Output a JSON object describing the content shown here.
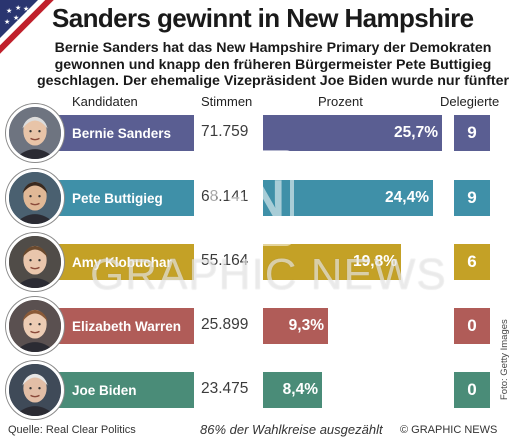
{
  "title": "Sanders gewinnt in New Hampshire",
  "subtitle": "Bernie Sanders hat das New Hampshire Primary der Demokraten gewonnen und knapp den früheren Bürgermeister Pete Buttigieg geschlagen. Der ehemalige Vizepräsident Joe Biden wurde nur fünfter",
  "headers": {
    "candidates": "Kandidaten",
    "votes": "Stimmen",
    "percent": "Prozent",
    "delegates": "Delegierte"
  },
  "watermark": "GRAPHIC NEWS",
  "photo_credit": "Foto: Getty Images",
  "footer": {
    "source": "Quelle: Real Clear Politics",
    "note": "86% der Wahlkreise ausgezählt",
    "brand": "© GRAPHIC NEWS"
  },
  "colors": {
    "sanders": "#5a5e92",
    "buttigieg": "#3f90a8",
    "klobuchar": "#c4a126",
    "warren": "#b05c58",
    "biden": "#4a8c78"
  },
  "chart_data": {
    "type": "bar",
    "title": "Sanders gewinnt in New Hampshire",
    "categories": [
      "Bernie Sanders",
      "Pete Buttigieg",
      "Amy Klobuchar",
      "Elizabeth Warren",
      "Joe Biden"
    ],
    "series": [
      {
        "name": "Stimmen",
        "values": [
          71759,
          68141,
          55164,
          25899,
          23475
        ]
      },
      {
        "name": "Prozent",
        "values": [
          25.7,
          24.4,
          19.8,
          9.3,
          8.4
        ]
      },
      {
        "name": "Delegierte",
        "values": [
          9,
          9,
          6,
          0,
          0
        ]
      }
    ],
    "rows": [
      {
        "name": "Bernie Sanders",
        "votes": "71.759",
        "percent": 25.7,
        "percent_label": "25,7%",
        "delegates": "9",
        "color": "#5a5e92"
      },
      {
        "name": "Pete Buttigieg",
        "votes": "68.141",
        "percent": 24.4,
        "percent_label": "24,4%",
        "delegates": "9",
        "color": "#3f90a8"
      },
      {
        "name": "Amy Klobuchar",
        "votes": "55.164",
        "percent": 19.8,
        "percent_label": "19,8%",
        "delegates": "6",
        "color": "#c4a126"
      },
      {
        "name": "Elizabeth Warren",
        "votes": "25.899",
        "percent": 9.3,
        "percent_label": "9,3%",
        "delegates": "0",
        "color": "#b05c58"
      },
      {
        "name": "Joe Biden",
        "votes": "23.475",
        "percent": 8.4,
        "percent_label": "8,4%",
        "delegates": "0",
        "color": "#4a8c78"
      }
    ],
    "xlim": [
      0,
      25.7
    ],
    "legend": "none",
    "grid": false
  }
}
